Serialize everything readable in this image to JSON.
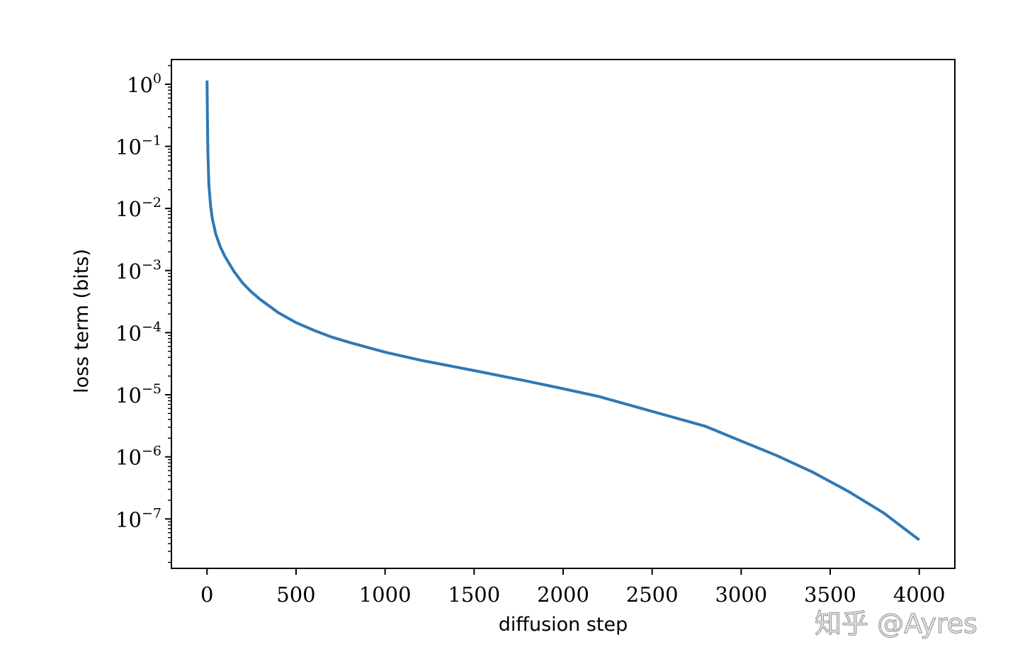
{
  "chart_data": {
    "type": "line",
    "title": "",
    "xlabel": "diffusion step",
    "ylabel": "loss term (bits)",
    "xlim": [
      -200,
      4200
    ],
    "ylim": [
      1.6e-08,
      2.5
    ],
    "yscale": "log",
    "grid": false,
    "legend": "none",
    "x_ticks": [
      0,
      500,
      1000,
      1500,
      2000,
      2500,
      3000,
      3500,
      4000
    ],
    "y_ticks": [
      {
        "value": 1,
        "label": "10",
        "exp": "0"
      },
      {
        "value": 0.1,
        "label": "10",
        "exp": "−1"
      },
      {
        "value": 0.01,
        "label": "10",
        "exp": "−2"
      },
      {
        "value": 0.001,
        "label": "10",
        "exp": "−3"
      },
      {
        "value": 0.0001,
        "label": "10",
        "exp": "−4"
      },
      {
        "value": 1e-05,
        "label": "10",
        "exp": "−5"
      },
      {
        "value": 1e-06,
        "label": "10",
        "exp": "−6"
      },
      {
        "value": 1e-07,
        "label": "10",
        "exp": "−7"
      }
    ],
    "series": [
      {
        "color": "#2f78b5",
        "x": [
          0,
          2,
          5,
          10,
          20,
          30,
          50,
          75,
          100,
          150,
          200,
          250,
          300,
          400,
          500,
          600,
          700,
          800,
          1000,
          1200,
          1500,
          1800,
          2000,
          2200,
          2500,
          2800,
          3000,
          3200,
          3400,
          3600,
          3800,
          4000
        ],
        "y": [
          1.15,
          0.3,
          0.08,
          0.025,
          0.011,
          0.0068,
          0.0038,
          0.0024,
          0.0017,
          0.00098,
          0.00063,
          0.00045,
          0.00034,
          0.00021,
          0.000145,
          0.000109,
          8.5e-05,
          6.95e-05,
          4.85e-05,
          3.6e-05,
          2.45e-05,
          1.65e-05,
          1.25e-05,
          9.4e-06,
          5.4e-06,
          3.1e-06,
          1.8e-06,
          1.05e-06,
          5.7e-07,
          2.8e-07,
          1.25e-07,
          4.6e-08
        ]
      }
    ]
  },
  "watermark": "知乎 @Ayres"
}
